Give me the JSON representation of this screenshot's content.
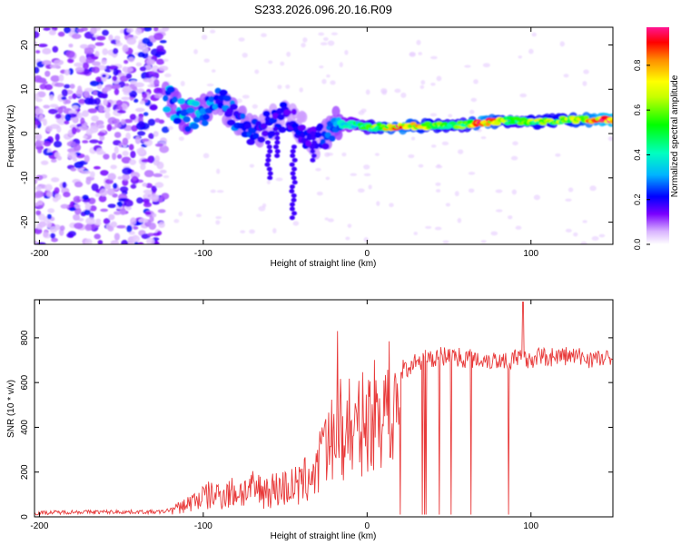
{
  "figure_title": "S233.2026.096.20.16.R09",
  "chart_data": [
    {
      "type": "heatmap",
      "title": "S233.2026.096.20.16.R09",
      "xlabel": "Height of straight line (km)",
      "ylabel": "Frequency (Hz)",
      "xlim": [
        -203,
        150
      ],
      "ylim": [
        -25,
        24
      ],
      "xticks": [
        -200,
        -100,
        0,
        100
      ],
      "yticks": [
        -20,
        -10,
        0,
        10,
        20
      ],
      "colorbar": {
        "label": "Normalized spectral amplitude",
        "range": [
          0,
          0.97
        ],
        "ticks": [
          0.0,
          0.2,
          0.4,
          0.6,
          0.8
        ]
      },
      "ridge": [
        {
          "x": -120,
          "y": 7.0,
          "amp": 0.3
        },
        {
          "x": -110,
          "y": 4.0,
          "amp": 0.35
        },
        {
          "x": -100,
          "y": 5.0,
          "amp": 0.3
        },
        {
          "x": -90,
          "y": 7.0,
          "amp": 0.25
        },
        {
          "x": -80,
          "y": 4.0,
          "amp": 0.25
        },
        {
          "x": -70,
          "y": 0.0,
          "amp": 0.25
        },
        {
          "x": -60,
          "y": 2.0,
          "amp": 0.2
        },
        {
          "x": -50,
          "y": 4.0,
          "amp": 0.2
        },
        {
          "x": -40,
          "y": 1.0,
          "amp": 0.2
        },
        {
          "x": -30,
          "y": -2.0,
          "amp": 0.2
        },
        {
          "x": -20,
          "y": 2.5,
          "amp": 0.3
        },
        {
          "x": -10,
          "y": 2.0,
          "amp": 0.4
        },
        {
          "x": 0,
          "y": 1.5,
          "amp": 0.5
        },
        {
          "x": 20,
          "y": 1.5,
          "amp": 0.85
        },
        {
          "x": 40,
          "y": 1.8,
          "amp": 0.6
        },
        {
          "x": 60,
          "y": 2.0,
          "amp": 0.55
        },
        {
          "x": 70,
          "y": 2.5,
          "amp": 0.9
        },
        {
          "x": 90,
          "y": 3.0,
          "amp": 0.5
        },
        {
          "x": 100,
          "y": 2.5,
          "amp": 0.6
        },
        {
          "x": 120,
          "y": 3.0,
          "amp": 0.6
        },
        {
          "x": 145,
          "y": 3.2,
          "amp": 0.95
        }
      ]
    },
    {
      "type": "line",
      "xlabel": "Height of straight line (km)",
      "ylabel": "SNR (10 * v/v)",
      "xlim": [
        -203,
        150
      ],
      "ylim": [
        0,
        970
      ],
      "xticks": [
        -200,
        -100,
        0,
        100
      ],
      "yticks": [
        0,
        200,
        400,
        600,
        800
      ],
      "series": [
        {
          "name": "SNR",
          "color": "#e83a3a",
          "x": [
            -203,
            -180,
            -150,
            -125,
            -115,
            -100,
            -90,
            -80,
            -70,
            -60,
            -50,
            -40,
            -35,
            -30,
            -25,
            -20,
            -15,
            -10,
            -5,
            0,
            10,
            20,
            30,
            40,
            50,
            60,
            80,
            100,
            120,
            150
          ],
          "y": [
            15,
            20,
            20,
            20,
            40,
            90,
            100,
            110,
            120,
            120,
            130,
            140,
            190,
            220,
            270,
            330,
            380,
            430,
            500,
            540,
            620,
            650,
            690,
            710,
            720,
            710,
            700,
            710,
            720,
            700
          ]
        }
      ]
    }
  ]
}
